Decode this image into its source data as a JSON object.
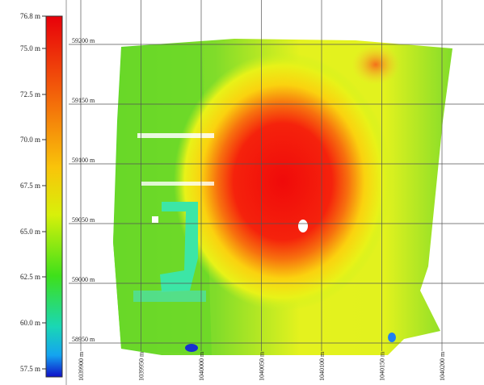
{
  "colorbar": {
    "labels": [
      "76.8 m",
      "75.0 m",
      "72.5 m",
      "70.0 m",
      "67.5 m",
      "65.0 m",
      "62.5 m",
      "60.0 m",
      "57.5 m"
    ]
  },
  "y_labels": [
    "59200 m",
    "59150 m",
    "59100 m",
    "59050 m",
    "59000 m",
    "58950 m"
  ],
  "x_labels": [
    "1039900 m",
    "1039950 m",
    "1040000 m",
    "1040050 m",
    "1040100 m",
    "1040150 m",
    "1040200 m"
  ]
}
